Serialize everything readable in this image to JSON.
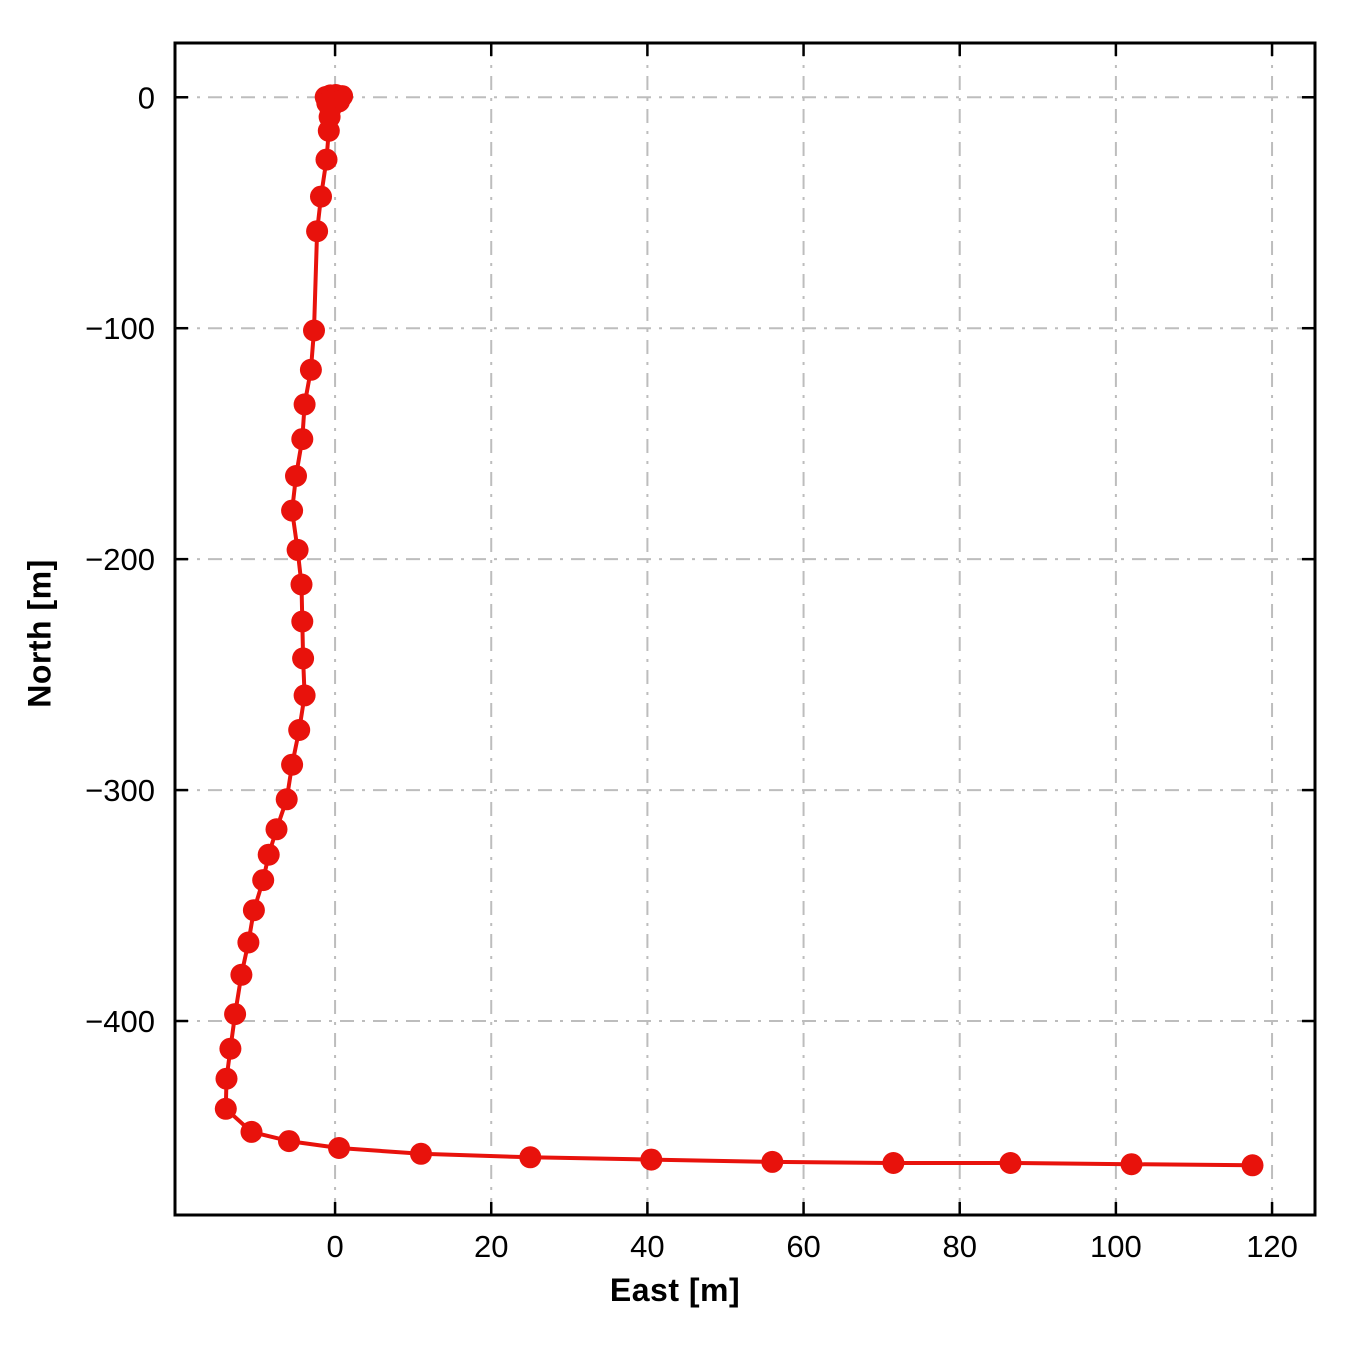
{
  "chart_data": {
    "type": "line",
    "title": "",
    "xlabel": "East [m]",
    "ylabel": "North [m]",
    "xlim": [
      -20.5,
      125.5
    ],
    "ylim": [
      -484,
      23.5
    ],
    "x_ticks": {
      "values": [
        0,
        20,
        40,
        60,
        80,
        100,
        120
      ],
      "labels": [
        "0",
        "20",
        "40",
        "60",
        "80",
        "100",
        "120"
      ]
    },
    "y_ticks": {
      "values": [
        0,
        -100,
        -200,
        -300,
        -400
      ],
      "labels": [
        "0",
        "−100",
        "−200",
        "−300",
        "−400"
      ]
    },
    "grid": {
      "style": "dash-dot",
      "color": "#bdbdbd"
    },
    "legend": "none",
    "series": [
      {
        "name": "trajectory",
        "color": "#e8120c",
        "marker": "circle",
        "marker_radius": 11,
        "line_width": 4,
        "points": [
          [
            0.9,
            0.5
          ],
          [
            0.1,
            1.0
          ],
          [
            -0.6,
            0.8
          ],
          [
            -1.2,
            0.1
          ],
          [
            -1.0,
            -2.5
          ],
          [
            -0.3,
            -1.2
          ],
          [
            0.5,
            -1.8
          ],
          [
            -0.6,
            -5.0
          ],
          [
            -0.7,
            -8.5
          ],
          [
            -0.8,
            -14.5
          ],
          [
            -1.1,
            -27
          ],
          [
            -1.8,
            -43
          ],
          [
            -2.3,
            -58
          ],
          [
            -2.7,
            -101
          ],
          [
            -3.1,
            -118
          ],
          [
            -3.9,
            -133
          ],
          [
            -4.2,
            -148
          ],
          [
            -5.0,
            -164
          ],
          [
            -5.5,
            -179
          ],
          [
            -4.8,
            -196
          ],
          [
            -4.3,
            -211
          ],
          [
            -4.2,
            -227
          ],
          [
            -4.1,
            -243
          ],
          [
            -3.9,
            -259
          ],
          [
            -4.6,
            -274
          ],
          [
            -5.5,
            -289
          ],
          [
            -6.2,
            -304
          ],
          [
            -7.5,
            -317
          ],
          [
            -8.5,
            -328
          ],
          [
            -9.2,
            -339
          ],
          [
            -10.4,
            -352
          ],
          [
            -11.1,
            -366
          ],
          [
            -12.0,
            -380
          ],
          [
            -12.8,
            -397
          ],
          [
            -13.4,
            -412
          ],
          [
            -13.9,
            -425
          ],
          [
            -14.0,
            -438
          ],
          [
            -10.7,
            -448
          ],
          [
            -5.9,
            -452
          ],
          [
            0.5,
            -455
          ],
          [
            11.0,
            -457.5
          ],
          [
            25.0,
            -459
          ],
          [
            40.5,
            -460
          ],
          [
            56.0,
            -461
          ],
          [
            71.5,
            -461.5
          ],
          [
            86.5,
            -461.5
          ],
          [
            102.0,
            -462
          ],
          [
            117.5,
            -462.5
          ]
        ]
      }
    ]
  }
}
